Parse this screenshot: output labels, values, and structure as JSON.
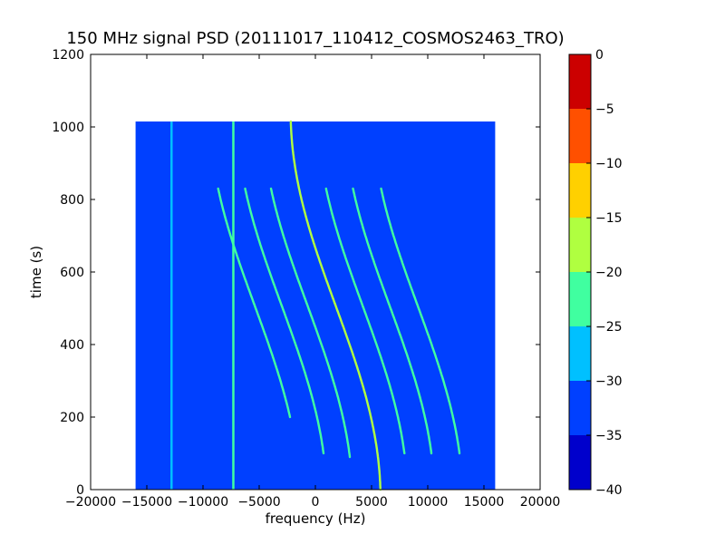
{
  "chart_data": {
    "type": "heatmap",
    "title": "150 MHz signal PSD (20111017_110412_COSMOS2463_TRO)",
    "xlabel": "frequency (Hz)",
    "ylabel": "time (s)",
    "xlim": [
      -20000,
      20000
    ],
    "ylim": [
      0,
      1200
    ],
    "x_ticks": [
      -20000,
      -15000,
      -10000,
      -5000,
      0,
      5000,
      10000,
      15000,
      20000
    ],
    "x_tick_labels": [
      "−20000",
      "−15000",
      "−10000",
      "−5000",
      "0",
      "5000",
      "10000",
      "15000",
      "20000"
    ],
    "y_ticks": [
      0,
      200,
      400,
      600,
      800,
      1000,
      1200
    ],
    "y_tick_labels": [
      "0",
      "200",
      "400",
      "600",
      "800",
      "1000",
      "1200"
    ],
    "data_extent": {
      "x": [
        -16000,
        16000
      ],
      "y": [
        0,
        1015
      ]
    },
    "background_level": -33,
    "vertical_lines": [
      {
        "freq": -12800,
        "t_range": [
          0,
          1015
        ],
        "level": -26
      },
      {
        "freq": -7300,
        "t_range": [
          0,
          1015
        ],
        "level": -25
      }
    ],
    "tracks": [
      {
        "center_freq": 1800,
        "t_range": [
          0,
          1015
        ],
        "peak_level": -18
      },
      {
        "center_freq": -700,
        "t_range": [
          90,
          830
        ],
        "peak_level": -24
      },
      {
        "center_freq": 4200,
        "t_range": [
          100,
          830
        ],
        "peak_level": -24
      },
      {
        "center_freq": -3000,
        "t_range": [
          100,
          830
        ],
        "peak_level": -24
      },
      {
        "center_freq": 6600,
        "t_range": [
          100,
          830
        ],
        "peak_level": -24
      },
      {
        "center_freq": 9100,
        "t_range": [
          100,
          830
        ],
        "peak_level": -25
      },
      {
        "center_freq": -5400,
        "t_range": [
          200,
          830
        ],
        "peak_level": -25
      }
    ],
    "colorbar": {
      "boundaries": [
        -40,
        -35,
        -30,
        -25,
        -20,
        -15,
        -10,
        -5,
        0
      ],
      "tick_labels": [
        "−40",
        "−35",
        "−30",
        "−25",
        "−20",
        "−15",
        "−10",
        "−5",
        "0"
      ],
      "colors": [
        "#0000cc",
        "#0040ff",
        "#00c0ff",
        "#40ffa0",
        "#b0ff40",
        "#ffd000",
        "#ff5000",
        "#cc0000"
      ]
    }
  }
}
